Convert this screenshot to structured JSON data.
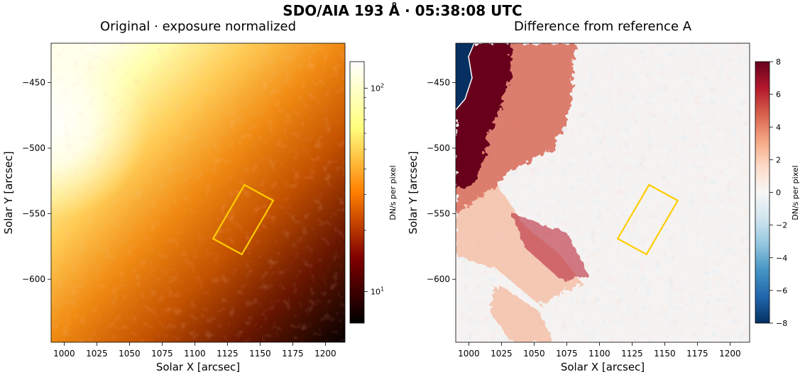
{
  "suptitle": "SDO/AIA 193 Å · 05:38:08 UTC",
  "chart_data": [
    {
      "type": "heatmap",
      "title": "Original · exposure normalized",
      "xlabel": "Solar X [arcsec]",
      "ylabel": "Solar Y [arcsec]",
      "xlim": [
        990,
        1215
      ],
      "ylim": [
        -648,
        -420
      ],
      "xticks": [
        1000,
        1025,
        1050,
        1075,
        1100,
        1125,
        1150,
        1175,
        1200
      ],
      "yticks": [
        -450,
        -500,
        -550,
        -600
      ],
      "colormap": "afmhot",
      "colorbar": {
        "label": "DN/s per pixel",
        "scale": "log",
        "range": [
          7,
          135
        ],
        "major_ticks": [
          {
            "value": 10,
            "base": "10",
            "exp": "1"
          },
          {
            "value": 100,
            "base": "10",
            "exp": "2"
          }
        ],
        "minor_ticks": [
          20,
          30,
          40,
          50,
          60,
          70,
          80,
          90
        ]
      },
      "region": {
        "color": "#ffcc00",
        "corners": [
          [
            1138,
            -528
          ],
          [
            1160,
            -540
          ],
          [
            1136,
            -581
          ],
          [
            1114,
            -569
          ]
        ]
      }
    },
    {
      "type": "heatmap",
      "title": "Difference from reference A",
      "xlabel": "Solar X [arcsec]",
      "ylabel": "Solar Y [arcsec]",
      "xlim": [
        990,
        1215
      ],
      "ylim": [
        -648,
        -420
      ],
      "xticks": [
        1000,
        1025,
        1050,
        1075,
        1100,
        1125,
        1150,
        1175,
        1200
      ],
      "yticks": [
        -450,
        -500,
        -550,
        -600
      ],
      "colormap": "RdBu_r",
      "colorbar": {
        "label": "DN/s per pixel",
        "scale": "linear",
        "range": [
          -8,
          8
        ],
        "ticks": [
          -8,
          -6,
          -4,
          -2,
          0,
          2,
          4,
          6,
          8
        ],
        "tick_labels": [
          "−8",
          "−6",
          "−4",
          "−2",
          "0",
          "2",
          "4",
          "6",
          "8"
        ]
      },
      "region": {
        "color": "#ffcc00",
        "corners": [
          [
            1138,
            -528
          ],
          [
            1160,
            -540
          ],
          [
            1136,
            -581
          ],
          [
            1114,
            -569
          ]
        ]
      }
    }
  ]
}
